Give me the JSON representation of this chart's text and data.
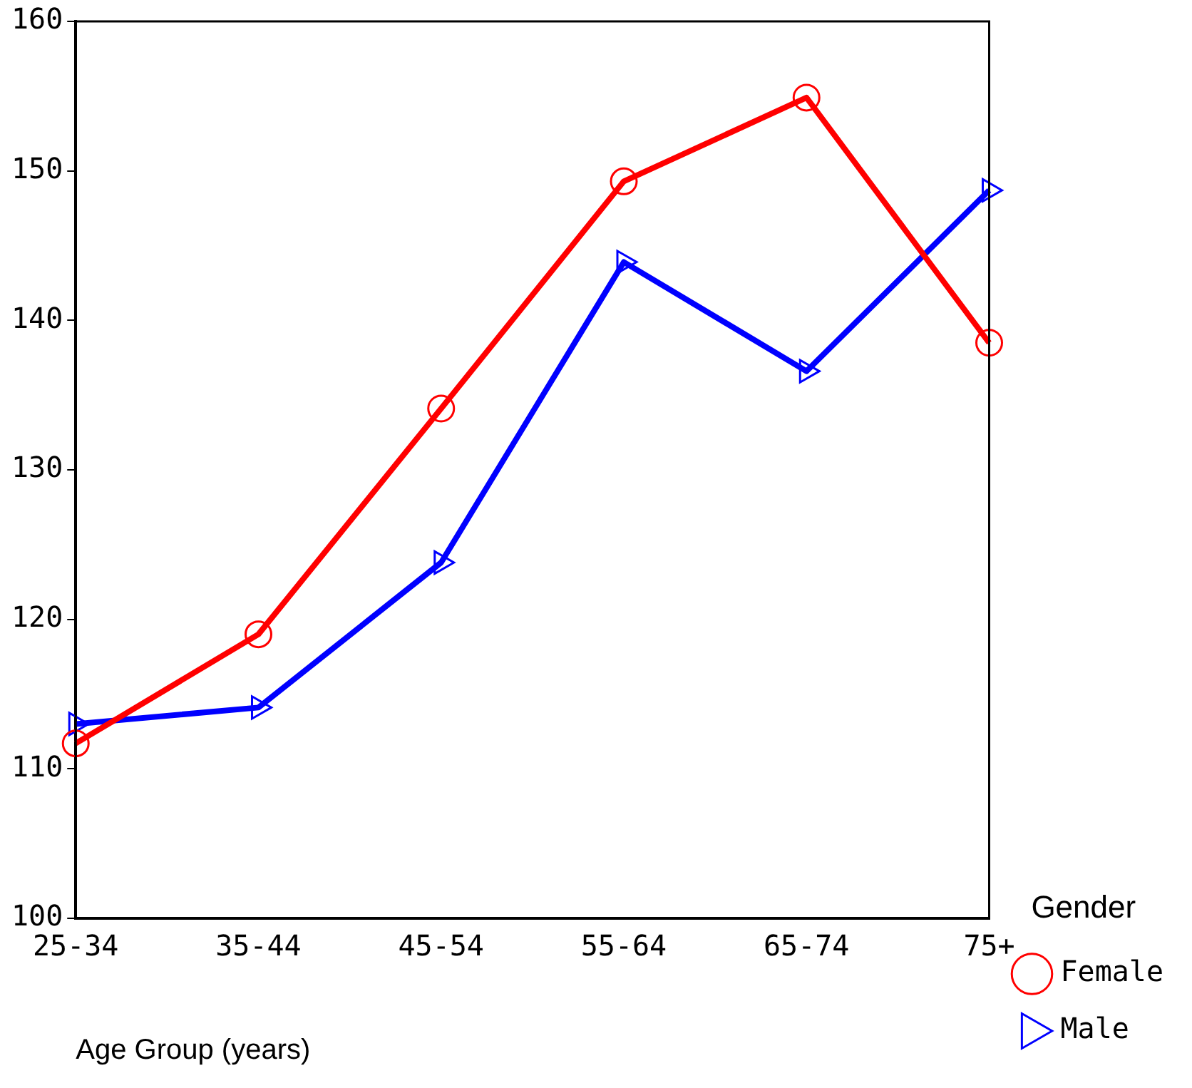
{
  "chart_data": {
    "type": "line",
    "xlabel": "Age Group (years)",
    "legend_title": "Gender",
    "categories": [
      "25-34",
      "35-44",
      "45-54",
      "55-64",
      "65-74",
      "75+"
    ],
    "series": [
      {
        "name": "Female",
        "color": "#ff0000",
        "marker": "circle",
        "values": [
          111.7,
          119.0,
          134.1,
          149.3,
          154.9,
          138.5
        ]
      },
      {
        "name": "Male",
        "color": "#0000ff",
        "marker": "triangle",
        "values": [
          113.0,
          114.1,
          123.8,
          143.9,
          136.6,
          148.7
        ]
      }
    ],
    "ylim": [
      100,
      160
    ],
    "yticks": [
      100,
      110,
      120,
      130,
      140,
      150,
      160
    ],
    "grid": false,
    "legend": "right",
    "line_style": "solid"
  }
}
